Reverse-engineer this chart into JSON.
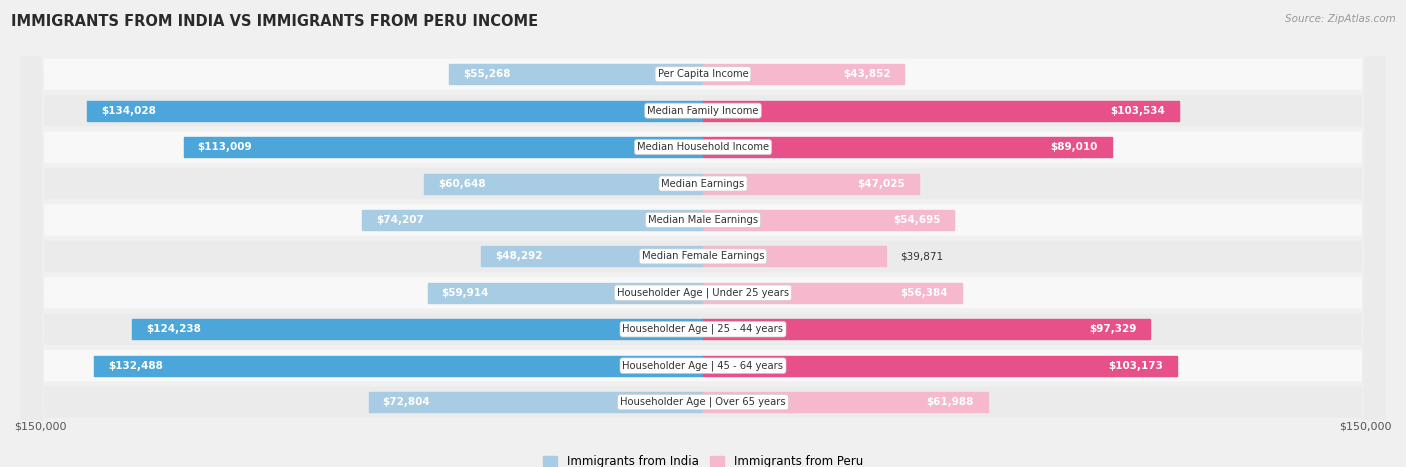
{
  "title": "IMMIGRANTS FROM INDIA VS IMMIGRANTS FROM PERU INCOME",
  "source": "Source: ZipAtlas.com",
  "categories": [
    "Per Capita Income",
    "Median Family Income",
    "Median Household Income",
    "Median Earnings",
    "Median Male Earnings",
    "Median Female Earnings",
    "Householder Age | Under 25 years",
    "Householder Age | 25 - 44 years",
    "Householder Age | 45 - 64 years",
    "Householder Age | Over 65 years"
  ],
  "india_values": [
    55268,
    134028,
    113009,
    60648,
    74207,
    48292,
    59914,
    124238,
    132488,
    72804
  ],
  "peru_values": [
    43852,
    103534,
    89010,
    47025,
    54695,
    39871,
    56384,
    97329,
    103173,
    61988
  ],
  "india_labels": [
    "$55,268",
    "$134,028",
    "$113,009",
    "$60,648",
    "$74,207",
    "$48,292",
    "$59,914",
    "$124,238",
    "$132,488",
    "$72,804"
  ],
  "peru_labels": [
    "$43,852",
    "$103,534",
    "$89,010",
    "$47,025",
    "$54,695",
    "$39,871",
    "$56,384",
    "$97,329",
    "$103,173",
    "$61,988"
  ],
  "india_color_light": "#a8cce4",
  "india_color_dark": "#4da6d9",
  "peru_color_light": "#f5b8cc",
  "peru_color_dark": "#e8508a",
  "india_threshold": 90000,
  "peru_threshold": 70000,
  "max_value": 150000,
  "background_color": "#f0f0f0",
  "row_colors": [
    "#f8f8f8",
    "#ebebeb"
  ],
  "legend_india": "Immigrants from India",
  "legend_peru": "Immigrants from Peru",
  "xlabel_left": "$150,000",
  "xlabel_right": "$150,000"
}
